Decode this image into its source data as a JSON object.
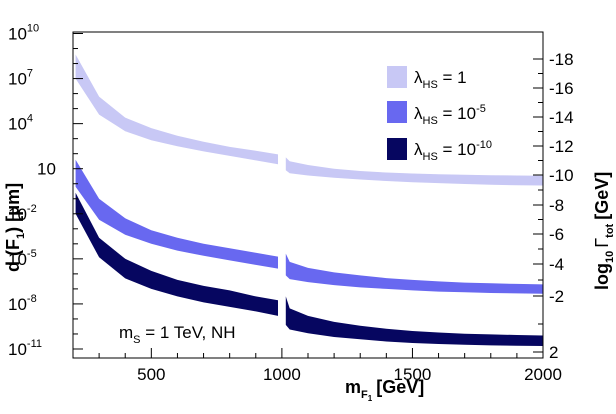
{
  "chart_data": {
    "type": "area",
    "xlabel": "m",
    "xlabel_sub": "F",
    "xlabel_subsub": "1",
    "xlabel_unit": "[GeV]",
    "ylabel_left": "d (F",
    "ylabel_left_sub": "1",
    "ylabel_left_unit": ") [μm]",
    "ylabel_right_prefix": "log",
    "ylabel_right_sub": "10",
    "ylabel_right_gamma": "Γ",
    "ylabel_right_gamma_sub": "tot",
    "ylabel_right_unit": "[GeV]",
    "xlim": [
      200,
      2000
    ],
    "ylim_log10": [
      -11.6,
      10.1
    ],
    "x_ticks": [
      500,
      1000,
      1500,
      2000
    ],
    "x_tick_labels": [
      "500",
      "1000",
      "1500",
      "2000"
    ],
    "y_ticks_log10": [
      -11,
      -8,
      -5,
      -2,
      1,
      4,
      7,
      10
    ],
    "y_tick_labels": [
      {
        "base": "10",
        "exp": "-11"
      },
      {
        "base": "10",
        "exp": "-8"
      },
      {
        "base": "10",
        "exp": "-5"
      },
      {
        "base": "10",
        "exp": "-2"
      },
      {
        "base": "10",
        "exp": "",
        "plain": true
      },
      {
        "base": "10",
        "exp": "4"
      },
      {
        "base": "10",
        "exp": "7"
      },
      {
        "base": "10",
        "exp": "10"
      }
    ],
    "right_axis_ticks": [
      -18,
      -16,
      -14,
      -12,
      -10,
      -8,
      -6,
      -4,
      -2,
      2
    ],
    "right_axis_tick_labels": [
      "-18",
      "-16",
      "-14",
      "-12",
      "-10",
      "-8",
      "-6",
      "-4",
      "-2",
      "2"
    ],
    "annotation": {
      "text_m": "m",
      "text_sub": "S",
      "text_rest": " = 1 TeV,  NH"
    },
    "series": [
      {
        "name": "λ_HS = 1",
        "legend_lambda": "λ",
        "legend_sub": "HS",
        "legend_eq": " = 1",
        "legend_exp": "",
        "color": "#c8c8f5",
        "x": [
          210,
          300,
          400,
          500,
          600,
          700,
          800,
          900,
          985,
          1000,
          1015,
          1030,
          1100,
          1200,
          1300,
          1400,
          1500,
          1600,
          1700,
          1800,
          1900,
          2000
        ],
        "low": [
          7.0,
          4.6,
          3.5,
          2.9,
          2.5,
          2.15,
          1.85,
          1.55,
          1.3,
          null,
          0.9,
          0.7,
          0.55,
          0.4,
          0.28,
          0.18,
          0.1,
          0.04,
          -0.02,
          -0.07,
          -0.1,
          -0.12
        ],
        "high": [
          8.6,
          5.8,
          4.4,
          3.7,
          3.2,
          2.8,
          2.45,
          2.2,
          1.95,
          null,
          1.75,
          1.5,
          1.25,
          1.0,
          0.85,
          0.75,
          0.68,
          0.63,
          0.6,
          0.57,
          0.55,
          0.53
        ]
      },
      {
        "name": "λ_HS = 10^-5",
        "legend_lambda": "λ",
        "legend_sub": "HS",
        "legend_eq": " = 10",
        "legend_exp": "-5",
        "color": "#6868f0",
        "x": [
          210,
          300,
          400,
          500,
          600,
          700,
          800,
          900,
          985,
          1000,
          1015,
          1030,
          1100,
          1200,
          1300,
          1400,
          1500,
          1600,
          1700,
          1800,
          1900,
          2000
        ],
        "low": [
          -0.2,
          -2.4,
          -3.4,
          -4.0,
          -4.45,
          -4.8,
          -5.1,
          -5.4,
          -5.65,
          null,
          -6.1,
          -6.35,
          -6.55,
          -6.75,
          -6.9,
          -7.0,
          -7.1,
          -7.18,
          -7.23,
          -7.27,
          -7.3,
          -7.32
        ],
        "high": [
          1.6,
          -1.0,
          -2.3,
          -3.1,
          -3.6,
          -4.0,
          -4.3,
          -4.6,
          -4.85,
          null,
          -4.65,
          -5.2,
          -5.6,
          -5.9,
          -6.1,
          -6.28,
          -6.4,
          -6.5,
          -6.58,
          -6.63,
          -6.67,
          -6.7
        ]
      },
      {
        "name": "λ_HS = 10^-10",
        "legend_lambda": "λ",
        "legend_sub": "HS",
        "legend_eq": " = 10",
        "legend_exp": "-10",
        "color": "#060660",
        "x": [
          210,
          300,
          400,
          500,
          600,
          700,
          800,
          900,
          985,
          1000,
          1015,
          1030,
          1100,
          1200,
          1300,
          1400,
          1500,
          1600,
          1700,
          1800,
          1900,
          2000
        ],
        "low": [
          -2.0,
          -4.9,
          -6.3,
          -7.0,
          -7.5,
          -7.9,
          -8.2,
          -8.5,
          -8.8,
          null,
          -9.4,
          -9.7,
          -9.95,
          -10.2,
          -10.35,
          -10.5,
          -10.6,
          -10.67,
          -10.72,
          -10.76,
          -10.79,
          -10.8
        ],
        "high": [
          -0.6,
          -3.6,
          -5.0,
          -5.8,
          -6.4,
          -6.8,
          -7.1,
          -7.5,
          -7.75,
          null,
          -7.5,
          -8.3,
          -8.8,
          -9.2,
          -9.45,
          -9.65,
          -9.8,
          -9.9,
          -9.98,
          -10.03,
          -10.07,
          -10.1
        ]
      }
    ]
  }
}
